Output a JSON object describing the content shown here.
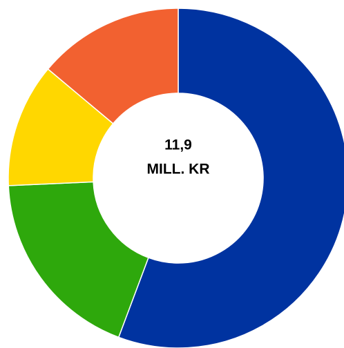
{
  "chart_data": {
    "type": "donut",
    "values": [
      55.7,
      18.6,
      11.8,
      13.9
    ],
    "colors": [
      "#0033a0",
      "#2ea80c",
      "#ffd700",
      "#f26130"
    ],
    "center_text": [
      "11,9",
      "MILL. KR"
    ]
  }
}
